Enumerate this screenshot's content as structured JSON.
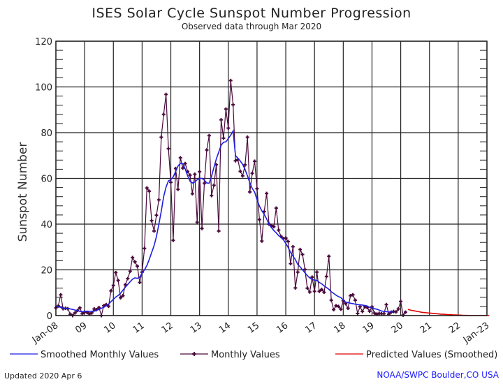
{
  "chart_data": {
    "type": "line",
    "title": "ISES Solar Cycle Sunspot Number Progression",
    "subtitle": "Observed data through Mar 2020",
    "xlabel": "",
    "ylabel": "Sunspot Number",
    "ylim": [
      0,
      120
    ],
    "yticks": [
      0,
      20,
      40,
      60,
      80,
      100,
      120
    ],
    "xlim_years": [
      2008.0,
      2023.0
    ],
    "xtick_labels": [
      "Jan-08",
      "09",
      "10",
      "11",
      "12",
      "13",
      "14",
      "15",
      "16",
      "17",
      "18",
      "19",
      "20",
      "21",
      "22",
      "Jan-23"
    ],
    "grid": true,
    "legend": {
      "placement": "bottom",
      "entries": [
        {
          "label": "Smoothed Monthly Values",
          "color": "#1f1fe0"
        },
        {
          "label": "Monthly Values",
          "color": "#4a0a3c"
        },
        {
          "label": "Predicted Values (Smoothed)",
          "color": "#e00000"
        }
      ]
    },
    "series": [
      {
        "name": "Monthly Values",
        "color": "#4a0a3c",
        "start": "2008-01",
        "values": [
          3.4,
          4.2,
          9.1,
          3.0,
          3.2,
          3.0,
          0.6,
          0.0,
          1.2,
          2.2,
          3.4,
          0.8,
          1.5,
          1.4,
          0.7,
          1.2,
          2.9,
          2.6,
          3.5,
          0.0,
          4.3,
          4.8,
          4.1,
          10.8,
          13.2,
          18.8,
          15.4,
          7.8,
          8.7,
          13.5,
          16.2,
          19.4,
          25.4,
          23.5,
          21.6,
          14.5,
          19.0,
          29.4,
          55.8,
          54.4,
          41.5,
          37.0,
          43.9,
          50.6,
          78.0,
          88.0,
          96.7,
          73.0,
          58.3,
          32.9,
          64.3,
          55.2,
          69.0,
          64.5,
          66.5,
          63.0,
          61.4,
          53.3,
          61.8,
          40.8,
          62.9,
          38.1,
          57.9,
          72.4,
          78.7,
          52.5,
          57.0,
          66.0,
          37.0,
          85.6,
          77.6,
          90.3,
          82.0,
          102.8,
          92.2,
          67.7,
          68.2,
          63.1,
          61.1,
          65.9,
          78.0,
          54.1,
          62.2,
          67.5,
          55.5,
          42.0,
          32.6,
          45.5,
          53.4,
          40.0,
          39.4,
          38.9,
          47.0,
          37.4,
          34.6,
          33.7,
          33.9,
          32.4,
          22.7,
          30.1,
          12.1,
          19.0,
          28.9,
          26.7,
          20.2,
          12.0,
          10.3,
          16.8,
          10.6,
          19.0,
          10.6,
          11.4,
          10.2,
          17.1,
          25.9,
          6.7,
          2.6,
          4.3,
          4.0,
          2.8,
          6.5,
          5.2,
          3.2,
          8.7,
          9.1,
          6.7,
          0.9,
          3.9,
          1.8,
          3.8,
          3.5,
          1.9,
          3.8,
          1.1,
          0.6,
          1.0,
          0.8,
          0.8,
          4.8,
          0.6,
          1.5,
          1.8,
          1.6,
          2.9,
          6.2,
          0.2,
          1.5
        ]
      },
      {
        "name": "Smoothed Monthly Values",
        "color": "#1f1fe0",
        "start": "2008-01",
        "values": [
          4.2,
          3.9,
          3.6,
          3.3,
          3.2,
          3.1,
          2.9,
          2.7,
          2.4,
          2.2,
          1.8,
          1.7,
          1.8,
          1.9,
          1.9,
          1.8,
          1.9,
          2.3,
          2.7,
          3.2,
          3.6,
          4.3,
          5.0,
          6.1,
          7.1,
          8.1,
          8.8,
          9.8,
          11.1,
          12.4,
          13.6,
          14.8,
          15.9,
          16.5,
          16.3,
          16.8,
          18.6,
          20.0,
          21.9,
          24.6,
          27.6,
          30.6,
          34.6,
          40.0,
          45.6,
          52.0,
          56.2,
          58.9,
          59.4,
          60.7,
          63.0,
          65.4,
          66.6,
          66.4,
          64.1,
          61.2,
          58.8,
          58.0,
          58.4,
          59.4,
          60.0,
          60.0,
          59.2,
          58.0,
          57.9,
          60.9,
          64.8,
          68.5,
          71.5,
          74.5,
          75.8,
          76.0,
          77.4,
          78.9,
          80.7,
          70.0,
          68.8,
          67.6,
          66.1,
          63.9,
          61.1,
          58.0,
          55.6,
          54.0,
          50.6,
          47.9,
          45.8,
          44.3,
          42.3,
          39.9,
          38.5,
          37.2,
          36.2,
          35.0,
          34.2,
          33.2,
          31.6,
          29.8,
          27.6,
          26.0,
          24.5,
          22.4,
          21.3,
          20.0,
          18.7,
          17.5,
          16.5,
          15.8,
          15.5,
          15.4,
          14.5,
          13.9,
          13.0,
          12.3,
          11.5,
          10.4,
          9.7,
          8.9,
          8.3,
          7.9,
          6.8,
          5.9,
          5.7,
          5.4,
          5.2,
          5.0,
          4.8,
          4.7,
          4.6,
          4.4,
          4.2,
          3.6,
          3.4,
          3.0,
          2.8,
          2.4,
          2.0,
          1.8,
          1.7,
          1.6,
          1.6,
          1.6
        ]
      },
      {
        "name": "Predicted Values (Smoothed)",
        "color": "#e00000",
        "start": "2020-04",
        "values": [
          2.7,
          2.4,
          2.2,
          2.0,
          1.8,
          1.6,
          1.4,
          1.3,
          1.2,
          1.1,
          1.0,
          0.9,
          0.8,
          0.7,
          0.6,
          0.6,
          0.5,
          0.4,
          0.4,
          0.3,
          0.3,
          0.2,
          0.2,
          0.1,
          0.1,
          0.1,
          0.0,
          0.0,
          0.0,
          0.0,
          0.0,
          0.0,
          0.0,
          0.0,
          0.0
        ]
      }
    ]
  },
  "footer": {
    "updated": "Updated 2020 Apr  6",
    "credit": "NOAA/SWPC Boulder,CO USA"
  }
}
